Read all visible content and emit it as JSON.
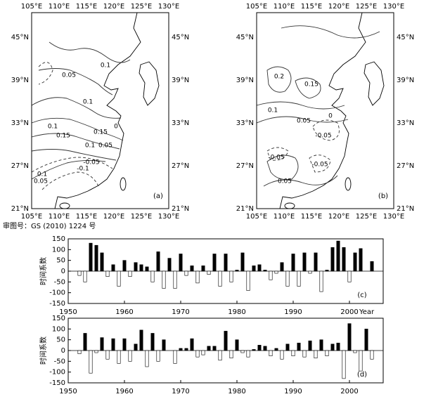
{
  "maps": [
    {
      "label": "(a)",
      "lon_labels": [
        "105°E",
        "110°E",
        "115°E",
        "120°E",
        "125°E",
        "130°E"
      ],
      "lat_labels": [
        "45°N",
        "39°N",
        "33°N",
        "27°N",
        "21°N"
      ],
      "contour_labels": [
        "0.1",
        "0.05",
        "0.1",
        "0.1",
        "0.15",
        "0.15",
        "0",
        "0.1",
        "0.05",
        "0.1",
        "0.05",
        "-0.1",
        "-0.05"
      ]
    },
    {
      "label": "(b)",
      "lon_labels": [
        "105°E",
        "110°E",
        "115°E",
        "120°E",
        "125°E",
        "130°E"
      ],
      "lat_labels": [
        "45°N",
        "39°N",
        "33°N",
        "27°N",
        "21°N"
      ],
      "contour_labels": [
        "0.2",
        "0.15",
        "0.1",
        "0.05",
        "0",
        "-0.05",
        "-0.05",
        "-0.05",
        "0.05"
      ]
    }
  ],
  "caption": "审图号：GS (2010) 1224 号",
  "chart_data": [
    {
      "type": "bar",
      "label": "(c)",
      "ylabel": "时间系数",
      "xlabel": "Year",
      "x": [
        1952,
        1953,
        1954,
        1955,
        1956,
        1957,
        1958,
        1959,
        1960,
        1961,
        1962,
        1963,
        1964,
        1965,
        1966,
        1967,
        1968,
        1969,
        1970,
        1971,
        1972,
        1973,
        1974,
        1975,
        1976,
        1977,
        1978,
        1979,
        1980,
        1981,
        1982,
        1983,
        1984,
        1985,
        1986,
        1987,
        1988,
        1989,
        1990,
        1991,
        1992,
        1993,
        1994,
        1995,
        1996,
        1997,
        1998,
        1999,
        2000,
        2001,
        2002,
        2003,
        2004
      ],
      "values": [
        -20,
        -50,
        130,
        120,
        85,
        -25,
        30,
        -70,
        50,
        -25,
        40,
        30,
        20,
        -50,
        90,
        -80,
        60,
        -80,
        80,
        -20,
        25,
        -55,
        25,
        -15,
        80,
        -70,
        80,
        -50,
        5,
        85,
        -90,
        25,
        30,
        5,
        -40,
        -10,
        40,
        -70,
        80,
        -70,
        85,
        -10,
        85,
        -95,
        5,
        110,
        140,
        110,
        -50,
        85,
        105,
        0,
        45
      ],
      "colors": {
        "positive": "#000000",
        "negative": "#ffffff"
      },
      "xlim": [
        1950,
        2006
      ],
      "xticks": [
        1950,
        1960,
        1970,
        1980,
        1990,
        2000
      ],
      "ylim": [
        -150,
        150
      ],
      "yticks": [
        -150,
        -100,
        -50,
        0,
        50,
        100,
        150
      ]
    },
    {
      "type": "bar",
      "label": "(d)",
      "ylabel": "时间系数",
      "x": [
        1952,
        1953,
        1954,
        1955,
        1956,
        1957,
        1958,
        1959,
        1960,
        1961,
        1962,
        1963,
        1964,
        1965,
        1966,
        1967,
        1968,
        1969,
        1970,
        1971,
        1972,
        1973,
        1974,
        1975,
        1976,
        1977,
        1978,
        1979,
        1980,
        1981,
        1982,
        1983,
        1984,
        1985,
        1986,
        1987,
        1988,
        1989,
        1990,
        1991,
        1992,
        1993,
        1994,
        1995,
        1996,
        1997,
        1998,
        1999,
        2000,
        2001,
        2002,
        2003,
        2004
      ],
      "values": [
        -15,
        80,
        -105,
        -10,
        60,
        -40,
        55,
        -60,
        55,
        -50,
        30,
        95,
        -75,
        80,
        -50,
        50,
        0,
        -60,
        10,
        10,
        55,
        -30,
        -20,
        20,
        20,
        -45,
        90,
        -35,
        50,
        -10,
        -30,
        5,
        25,
        20,
        -25,
        10,
        -40,
        30,
        -25,
        35,
        -30,
        45,
        -35,
        50,
        -25,
        30,
        35,
        -130,
        125,
        -10,
        -95,
        100,
        -40
      ],
      "colors": {
        "positive": "#000000",
        "negative": "#ffffff"
      },
      "xlim": [
        1950,
        2006
      ],
      "xticks": [
        1950,
        1960,
        1970,
        1980,
        1990,
        2000
      ],
      "ylim": [
        -150,
        150
      ],
      "yticks": [
        -150,
        -100,
        -50,
        0,
        50,
        100,
        150
      ]
    }
  ]
}
